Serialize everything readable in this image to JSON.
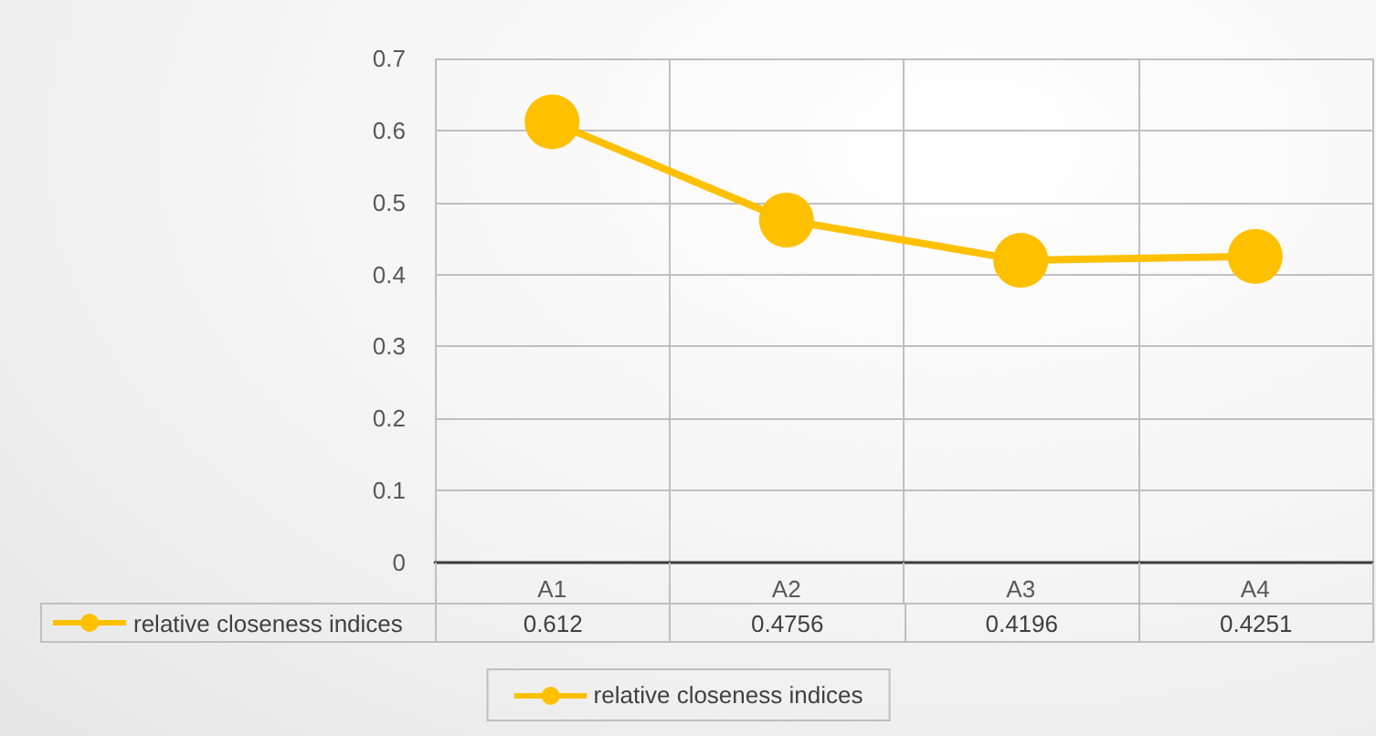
{
  "chart_data": {
    "type": "line",
    "categories": [
      "A1",
      "A2",
      "A3",
      "A4"
    ],
    "series": [
      {
        "name": "relative closeness indices",
        "color": "#ffc000",
        "values": [
          0.612,
          0.4756,
          0.4196,
          0.4251
        ]
      }
    ],
    "ylim": [
      0,
      0.7
    ],
    "yticks": [
      0,
      0.1,
      0.2,
      0.3,
      0.4,
      0.5,
      0.6,
      0.7
    ],
    "grid": true,
    "legend": "bottom",
    "marker": "circle",
    "line_style": "solid",
    "data_labels": true
  }
}
